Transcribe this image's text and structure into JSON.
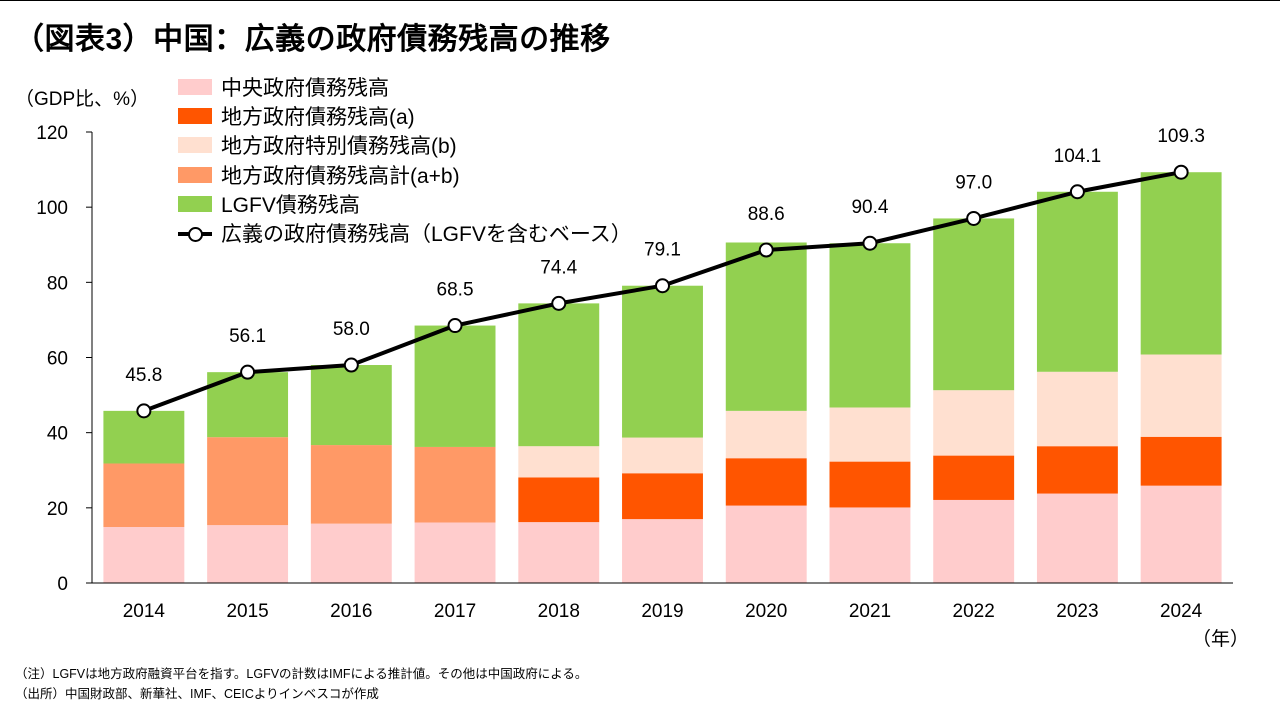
{
  "title": "（図表3）中国：広義の政府債務残高の推移",
  "notes": [
    "（注）LGFVは地方政府融資平台を指す。LGFVの計数はIMFによる推計値。その他は中国政府による。",
    "（出所）中国財政部、新華社、IMF、CEICよりインベスコが作成"
  ],
  "colors": {
    "central": "#FFCCCC",
    "local_a": "#FF5500",
    "special_b": "#FFE0D0",
    "local_total": "#FF9966",
    "lgfv": "#92D050",
    "line": "#000000",
    "marker_fill": "#FFFFFF"
  },
  "chart_data": {
    "type": "bar",
    "stacked": true,
    "ylabel": "（GDP比、%）",
    "xlabel": "（年）",
    "ylim": [
      0,
      120
    ],
    "yticks": [
      0,
      20,
      40,
      60,
      80,
      100,
      120
    ],
    "categories": [
      "2014",
      "2015",
      "2016",
      "2017",
      "2018",
      "2019",
      "2020",
      "2021",
      "2022",
      "2023",
      "2024"
    ],
    "series": [
      {
        "key": "central",
        "name": "中央政府債務残高",
        "values": [
          14.9,
          15.4,
          15.8,
          16.1,
          16.2,
          17.0,
          20.6,
          20.1,
          22.1,
          23.8,
          25.9
        ]
      },
      {
        "key": "local_a",
        "name": "地方政府債務残高(a)",
        "values": [
          null,
          null,
          null,
          null,
          11.9,
          12.2,
          12.6,
          12.2,
          11.8,
          12.6,
          13.0
        ]
      },
      {
        "key": "special_b",
        "name": "地方政府特別債務残高(b)",
        "values": [
          null,
          null,
          null,
          null,
          8.3,
          9.5,
          12.6,
          14.4,
          17.4,
          19.8,
          21.9
        ]
      },
      {
        "key": "local_total",
        "name": "地方政府債務残高計(a+b)",
        "values": [
          16.9,
          23.4,
          20.9,
          20.1,
          null,
          null,
          null,
          null,
          null,
          null,
          null
        ]
      },
      {
        "key": "lgfv",
        "name": "LGFV債務残高",
        "values": [
          14.0,
          17.3,
          21.3,
          32.3,
          38.0,
          40.4,
          44.8,
          43.7,
          45.7,
          47.9,
          48.5
        ]
      }
    ],
    "line": {
      "key": "line",
      "name": "広義の政府債務残高（LGFVを含むベース）",
      "values": [
        45.8,
        56.1,
        58.0,
        68.5,
        74.4,
        79.1,
        88.6,
        90.4,
        97.0,
        104.1,
        109.3
      ],
      "labels": [
        "45.8",
        "56.1",
        "58.0",
        "68.5",
        "74.4",
        "79.1",
        "88.6",
        "90.4",
        "97.0",
        "104.1",
        "109.3"
      ]
    }
  }
}
